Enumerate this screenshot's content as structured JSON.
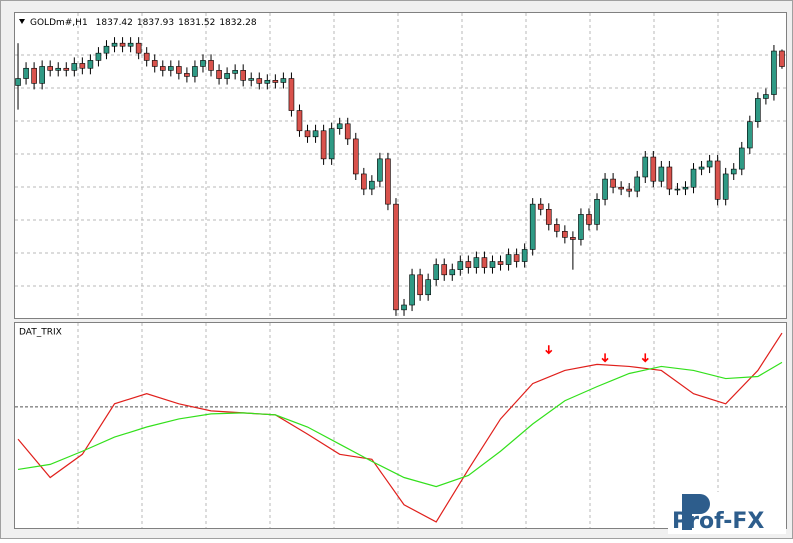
{
  "chart_data": {
    "type": "candlestick",
    "symbol": "GOLDm#,H1",
    "quote": [
      1837.42,
      1837.93,
      1831.52,
      1832.28
    ],
    "up_color": "#2f9a85",
    "down_color": "#d9524c",
    "ylim": [
      1749,
      1850
    ],
    "open": [
      1826,
      1828.3,
      1831.7,
      1826.7,
      1832.3,
      1831,
      1831.7,
      1831,
      1833.3,
      1831.7,
      1834.3,
      1836.7,
      1839,
      1840,
      1839,
      1840,
      1836.7,
      1834.3,
      1832.3,
      1831,
      1832.3,
      1830,
      1829,
      1832.3,
      1834.3,
      1831,
      1828.3,
      1830,
      1831,
      1827.7,
      1828.3,
      1826.7,
      1827.7,
      1827,
      1828.3,
      1817.7,
      1811,
      1809,
      1811,
      1801.7,
      1811.7,
      1813.3,
      1808.3,
      1796.7,
      1791.7,
      1794.3,
      1801.7,
      1786.7,
      1751.7,
      1753.3,
      1763.3,
      1756.7,
      1761.7,
      1766.7,
      1763.3,
      1765,
      1767.7,
      1765.7,
      1769,
      1765.7,
      1767.7,
      1766.7,
      1770,
      1767.7,
      1771.7,
      1786.7,
      1785,
      1780,
      1777.7,
      1775.7,
      1775,
      1783.3,
      1780,
      1788.3,
      1795,
      1792.3,
      1791.7,
      1791,
      1795.7,
      1802.3,
      1794.3,
      1799,
      1791.7,
      1791.7,
      1792.3,
      1798.3,
      1799,
      1801,
      1788.3,
      1796.7,
      1798.3,
      1805.3,
      1814,
      1821.7,
      1823,
      1837.42
    ],
    "high": [
      1840,
      1833.7,
      1833.7,
      1834.3,
      1834.3,
      1833.7,
      1833.7,
      1835.3,
      1835.3,
      1836.3,
      1838.7,
      1841,
      1842,
      1842,
      1842,
      1842,
      1838.7,
      1836.3,
      1834.3,
      1834.3,
      1834.3,
      1832,
      1834.3,
      1836.3,
      1836.3,
      1833,
      1832,
      1833,
      1833,
      1830.3,
      1830.3,
      1829.7,
      1829.7,
      1830.3,
      1830.3,
      1819.7,
      1813,
      1813,
      1813,
      1813.7,
      1815.3,
      1815.3,
      1810.3,
      1798.7,
      1796.3,
      1803.7,
      1803.7,
      1788.7,
      1755.3,
      1765.3,
      1765.3,
      1763.7,
      1768.7,
      1768.7,
      1767,
      1769.7,
      1769.7,
      1771,
      1771,
      1769.7,
      1769.7,
      1772,
      1772,
      1773.7,
      1788.7,
      1788.7,
      1787,
      1782,
      1779.7,
      1777.7,
      1785.3,
      1785.3,
      1790.3,
      1797,
      1797,
      1794.3,
      1793.7,
      1797.7,
      1804.3,
      1804.3,
      1801,
      1801,
      1793.7,
      1794.3,
      1800.3,
      1801,
      1803,
      1803,
      1798.7,
      1800.3,
      1807.3,
      1816,
      1823.7,
      1825,
      1839.4,
      1837.93
    ],
    "low": [
      1818,
      1826.3,
      1824.7,
      1824.7,
      1829,
      1829,
      1829,
      1829,
      1829.7,
      1829.7,
      1832.3,
      1834.7,
      1837,
      1837,
      1837,
      1834.7,
      1832.3,
      1830.3,
      1829,
      1829,
      1828,
      1827,
      1827,
      1830.3,
      1829,
      1826.3,
      1826.3,
      1828,
      1825.7,
      1825.7,
      1824.7,
      1824.7,
      1825,
      1825,
      1815.7,
      1809,
      1807,
      1807,
      1799.7,
      1799.7,
      1809.7,
      1806.3,
      1794.7,
      1789.7,
      1789.7,
      1792.3,
      1784.7,
      1749.7,
      1749.7,
      1751.3,
      1754.7,
      1754.7,
      1759.7,
      1761.3,
      1761.3,
      1763,
      1763.7,
      1763.7,
      1763.7,
      1763.7,
      1764.7,
      1764.7,
      1765.7,
      1765.7,
      1769.7,
      1783,
      1778,
      1775.7,
      1773.7,
      1765,
      1773,
      1778,
      1778,
      1786.3,
      1790.3,
      1789.7,
      1789,
      1789,
      1793.7,
      1792.3,
      1792.3,
      1789.7,
      1789.7,
      1789.7,
      1790.3,
      1796.3,
      1797,
      1786.3,
      1786.3,
      1794.7,
      1796.3,
      1803.3,
      1812,
      1819.7,
      1821,
      1831.52
    ],
    "close": [
      1828.3,
      1831.7,
      1826.7,
      1832.3,
      1831,
      1831.7,
      1831,
      1833.3,
      1831.7,
      1834.3,
      1836.7,
      1839,
      1840,
      1839,
      1840,
      1836.7,
      1834.3,
      1832.3,
      1831,
      1832.3,
      1830,
      1829,
      1832.3,
      1834.3,
      1831,
      1828.3,
      1830,
      1831,
      1827.7,
      1828.3,
      1826.7,
      1827.7,
      1827,
      1828.3,
      1817.7,
      1811,
      1809,
      1811,
      1801.7,
      1811.7,
      1813.3,
      1808.3,
      1796.7,
      1791.7,
      1794.3,
      1801.7,
      1786.7,
      1751.7,
      1753.3,
      1763.3,
      1756.7,
      1761.7,
      1766.7,
      1763.3,
      1765,
      1767.7,
      1765.7,
      1769,
      1765.7,
      1767.7,
      1766.7,
      1770,
      1767.7,
      1771.7,
      1786.7,
      1785,
      1780,
      1777.7,
      1775.7,
      1775,
      1783.3,
      1780,
      1788.3,
      1795,
      1792.3,
      1791.7,
      1791,
      1795.7,
      1802.3,
      1794.3,
      1799,
      1791.7,
      1791.7,
      1792.3,
      1798.3,
      1799,
      1801,
      1788.3,
      1796.7,
      1798.3,
      1805.3,
      1814,
      1821.7,
      1823,
      1837.4,
      1832.28
    ],
    "indicator": {
      "type": "line",
      "title": "DAT_TRIX",
      "ylim": [
        -1.2,
        0.83
      ],
      "zero_line": 0,
      "x": [
        0,
        4,
        8,
        12,
        16,
        20,
        24,
        28,
        32,
        36,
        40,
        44,
        48,
        52,
        56,
        60,
        64,
        68,
        72,
        76,
        80,
        84,
        88,
        92,
        95
      ],
      "series": [
        {
          "color": "#e0201c",
          "values": [
            -0.32,
            -0.7,
            -0.47,
            0.03,
            0.13,
            0.03,
            -0.04,
            -0.06,
            -0.08,
            -0.27,
            -0.47,
            -0.52,
            -0.97,
            -1.14,
            -0.62,
            -0.12,
            0.23,
            0.36,
            0.42,
            0.4,
            0.36,
            0.13,
            0.03,
            0.36,
            0.73
          ]
        },
        {
          "color": "#33e01c",
          "values": [
            -0.62,
            -0.57,
            -0.44,
            -0.3,
            -0.2,
            -0.12,
            -0.07,
            -0.06,
            -0.08,
            -0.2,
            -0.37,
            -0.54,
            -0.7,
            -0.79,
            -0.68,
            -0.44,
            -0.17,
            0.06,
            0.2,
            0.33,
            0.4,
            0.36,
            0.28,
            0.3,
            0.44
          ]
        }
      ],
      "signals": {
        "color": "#ff0000",
        "x": [
          66,
          73,
          78
        ],
        "values": [
          0.53,
          0.45,
          0.45
        ]
      }
    }
  },
  "logo": "Prof-FX"
}
